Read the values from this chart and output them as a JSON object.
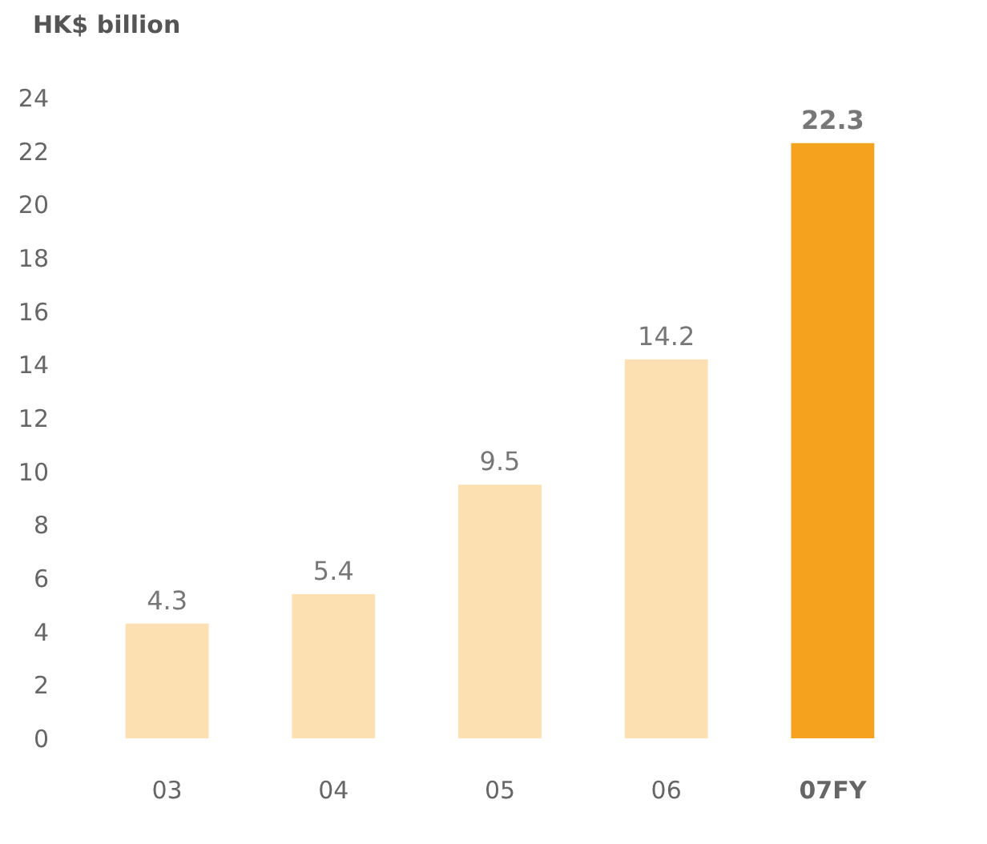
{
  "chart_data": {
    "type": "bar",
    "ylabel": "HK$ billion",
    "categories": [
      "03",
      "04",
      "05",
      "06",
      "07FY"
    ],
    "values": [
      4.3,
      5.4,
      9.5,
      14.2,
      22.3
    ],
    "colors": [
      "#fde0b2",
      "#fde0b2",
      "#fde0b2",
      "#fde0b2",
      "#f5a31f"
    ],
    "ylim": [
      0,
      24
    ],
    "yticks": [
      0,
      2,
      4,
      6,
      8,
      10,
      12,
      14,
      16,
      18,
      20,
      22,
      24
    ],
    "data_labels": true,
    "grid": false
  }
}
